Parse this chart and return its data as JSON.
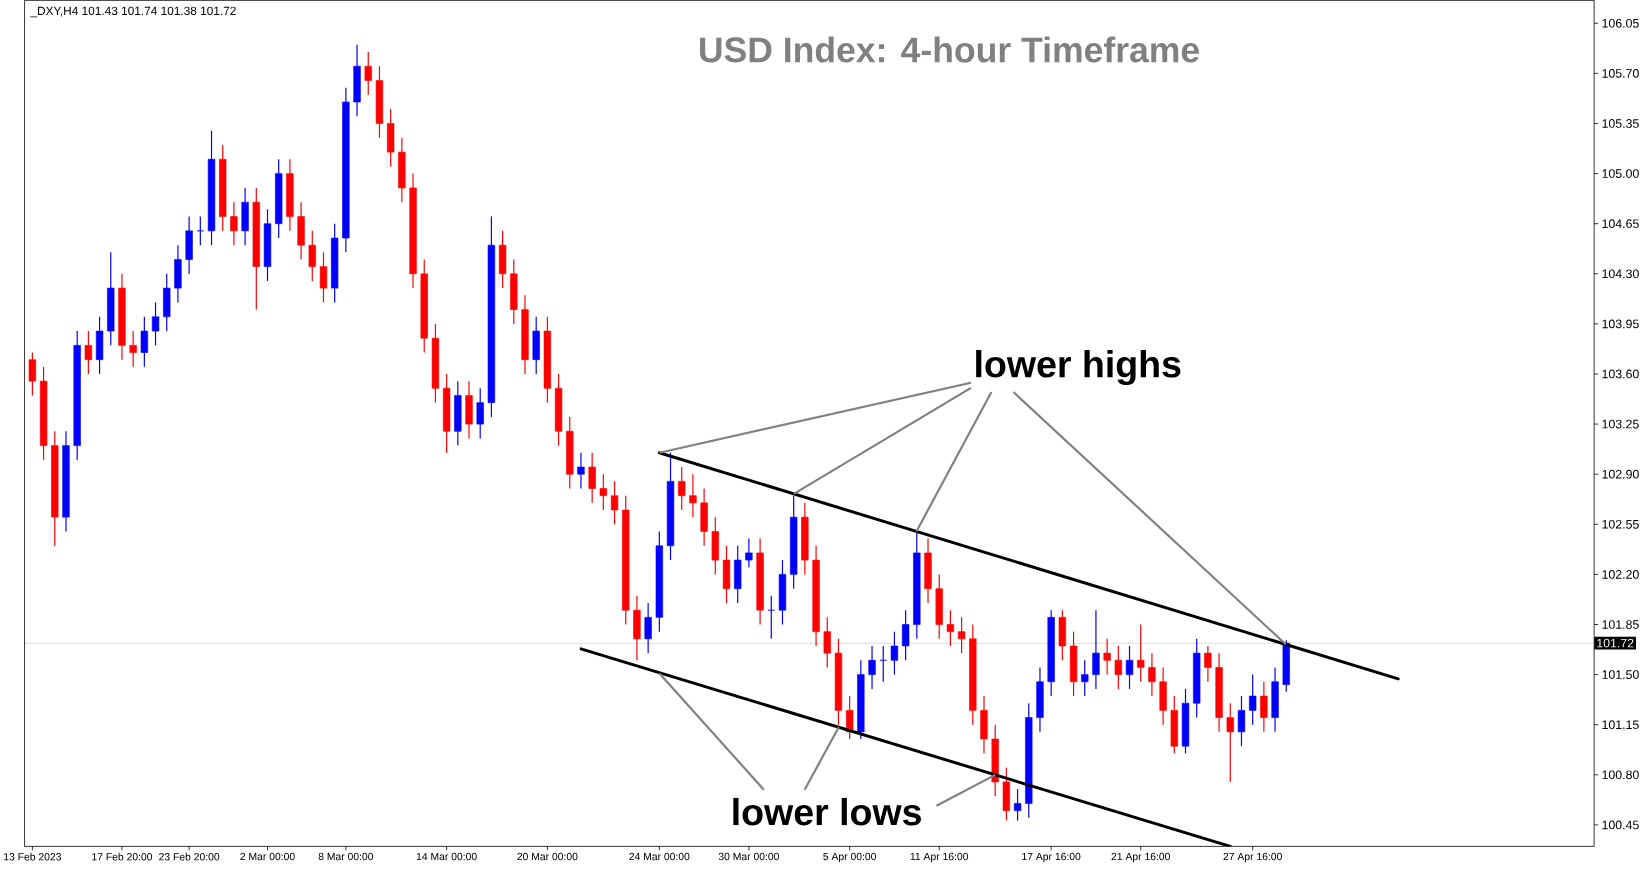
{
  "chart_data": {
    "type": "candlestick",
    "title": "USD Index: 4-hour Timeframe",
    "annotations": [
      "_DXY,H4  101.43 101.74 101.38 101.72",
      {
        "text": "lower highs",
        "x": "24 Mar 00:00",
        "y": 103.05
      },
      {
        "text": "lower lows",
        "x": "24 Mar 00:00",
        "y": 101.51
      }
    ],
    "categories": [
      "13 Feb 2023",
      null,
      null,
      null,
      null,
      null,
      null,
      null,
      "17 Feb 20:00",
      null,
      null,
      null,
      null,
      null,
      "23 Feb 20:00",
      null,
      null,
      null,
      null,
      null,
      null,
      "2 Mar 00:00",
      null,
      null,
      null,
      null,
      null,
      null,
      "8 Mar 00:00",
      null,
      null,
      null,
      null,
      null,
      null,
      null,
      null,
      "14 Mar 00:00",
      null,
      null,
      null,
      null,
      null,
      null,
      null,
      null,
      "20 Mar 00:00",
      null,
      null,
      null,
      null,
      null,
      null,
      null,
      null,
      null,
      "24 Mar 00:00",
      null,
      null,
      null,
      null,
      null,
      null,
      null,
      "30 Mar 00:00",
      null,
      null,
      null,
      null,
      null,
      null,
      null,
      null,
      "5 Apr 00:00",
      null,
      null,
      null,
      null,
      null,
      null,
      null,
      "11 Apr 16:00",
      null,
      null,
      null,
      null,
      null,
      null,
      null,
      null,
      null,
      "17 Apr 16:00",
      null,
      null,
      null,
      null,
      null,
      null,
      null,
      "21 Apr 16:00",
      null,
      null,
      null,
      null,
      null,
      null,
      null,
      null,
      null,
      "27 Apr 16:00",
      null,
      null,
      null,
      null,
      null,
      null,
      null,
      null,
      null,
      null,
      null,
      null,
      null,
      null,
      null,
      null,
      null,
      null,
      null,
      null,
      null,
      null,
      null,
      null,
      null,
      null,
      null,
      null,
      null,
      null
    ],
    "colors": [
      "#ff0000",
      "#ff0000",
      "#ff0000",
      "#0000ff",
      "#0000ff",
      "#ff0000",
      "#0000ff",
      "#0000ff",
      "#ff0000",
      "#ff0000",
      "#0000ff",
      "#0000ff",
      "#0000ff",
      "#0000ff",
      "#0000ff",
      "#0000ff",
      "#0000ff",
      "#ff0000",
      "#ff0000",
      "#0000ff",
      "#ff0000",
      "#0000ff",
      "#0000ff",
      "#ff0000",
      "#ff0000",
      "#ff0000",
      "#ff0000",
      "#0000ff",
      "#0000ff",
      "#0000ff",
      "#ff0000",
      "#ff0000",
      "#ff0000",
      "#ff0000",
      "#ff0000",
      "#ff0000",
      "#ff0000",
      "#ff0000",
      "#0000ff",
      "#ff0000",
      "#0000ff",
      "#0000ff",
      "#ff0000",
      "#ff0000",
      "#ff0000",
      "#0000ff",
      "#ff0000",
      "#ff0000",
      "#ff0000",
      "#0000ff",
      "#ff0000",
      "#ff0000",
      "#ff0000",
      "#ff0000",
      "#ff0000",
      "#0000ff",
      "#0000ff",
      "#0000ff",
      "#ff0000",
      "#ff0000",
      "#ff0000",
      "#ff0000",
      "#ff0000",
      "#0000ff",
      "#0000ff",
      "#ff0000",
      "#0000ff",
      "#0000ff",
      "#0000ff",
      "#ff0000",
      "#ff0000",
      "#ff0000",
      "#ff0000",
      "#ff0000",
      "#0000ff",
      "#0000ff",
      "#0000ff",
      "#0000ff",
      "#0000ff",
      "#0000ff",
      "#ff0000",
      "#ff0000",
      "#ff0000",
      "#ff0000",
      "#ff0000",
      "#ff0000",
      "#ff0000",
      "#ff0000",
      "#0000ff",
      "#0000ff",
      "#0000ff",
      "#0000ff",
      "#ff0000",
      "#ff0000",
      "#0000ff",
      "#0000ff",
      "#ff0000",
      "#ff0000",
      "#0000ff",
      "#ff0000",
      "#ff0000",
      "#ff0000",
      "#ff0000",
      "#0000ff",
      "#0000ff",
      "#ff0000",
      "#ff0000",
      "#ff0000",
      "#0000ff",
      "#0000ff",
      "#ff0000",
      "#0000ff",
      "#0000ff",
      null,
      null,
      null,
      null,
      null,
      null,
      null,
      null,
      null,
      null,
      null,
      null,
      null,
      null,
      null,
      null,
      null,
      null,
      null,
      null,
      null,
      null,
      null,
      null,
      null,
      null,
      null
    ],
    "ylim": [
      100.3,
      106.21
    ],
    "yticks": [
      {
        "value": 100.45,
        "label": "100.45"
      },
      {
        "value": 100.8,
        "label": "100.80"
      },
      {
        "value": 101.15,
        "label": "101.15"
      },
      {
        "value": 101.5,
        "label": "101.50"
      },
      {
        "value": 101.85,
        "label": "101.85"
      },
      {
        "value": 102.2,
        "label": "102.20"
      },
      {
        "value": 102.55,
        "label": "102.55"
      },
      {
        "value": 102.9,
        "label": "102.90"
      },
      {
        "value": 103.25,
        "label": "103.25"
      },
      {
        "value": 103.6,
        "label": "103.60"
      },
      {
        "value": 103.95,
        "label": "103.95"
      },
      {
        "value": 104.3,
        "label": "104.30"
      },
      {
        "value": 104.65,
        "label": "104.65"
      },
      {
        "value": 105.0,
        "label": "105.00"
      },
      {
        "value": 105.35,
        "label": "105.35"
      },
      {
        "value": 105.7,
        "label": "105.70"
      },
      {
        "value": 106.05,
        "label": "106.05"
      }
    ],
    "ref_lines": [
      {
        "axis": "y",
        "value": 101.72,
        "label": "101.72",
        "color": "#8c99a6"
      }
    ],
    "series": [
      {
        "type": "line",
        "color": "#000000",
        "values": [
          null,
          null,
          null,
          null,
          null,
          null,
          null,
          null,
          null,
          null,
          null,
          null,
          null,
          null,
          null,
          null,
          null,
          null,
          null,
          null,
          null,
          null,
          null,
          null,
          null,
          null,
          null,
          null,
          null,
          null,
          null,
          null,
          null,
          null,
          null,
          null,
          null,
          null,
          null,
          null,
          null,
          null,
          null,
          null,
          null,
          null,
          null,
          null,
          null,
          null,
          null,
          null,
          null,
          null,
          null,
          null,
          103.05,
          null,
          null,
          null,
          null,
          null,
          null,
          null,
          null,
          null,
          null,
          null,
          null,
          null,
          null,
          null,
          null,
          null,
          null,
          null,
          null,
          null,
          null,
          null,
          null,
          null,
          null,
          null,
          null,
          null,
          null,
          null,
          null,
          null,
          null,
          null,
          null,
          null,
          null,
          null,
          null,
          null,
          null,
          null,
          null,
          null,
          null,
          null,
          null,
          null,
          null,
          null,
          null,
          null,
          null,
          null,
          null,
          null,
          null,
          null,
          null,
          null,
          null,
          null,
          null,
          null,
          101.47,
          null,
          null,
          null,
          null,
          null,
          null,
          null,
          null,
          null,
          null,
          null,
          null,
          null,
          null,
          null,
          null,
          null
        ]
      },
      {
        "type": "line",
        "color": "#000000",
        "values": [
          null,
          null,
          null,
          null,
          null,
          null,
          null,
          null,
          null,
          null,
          null,
          null,
          null,
          null,
          null,
          null,
          null,
          null,
          null,
          null,
          null,
          null,
          null,
          null,
          null,
          null,
          null,
          null,
          null,
          null,
          null,
          null,
          null,
          null,
          null,
          null,
          null,
          null,
          null,
          null,
          null,
          null,
          null,
          null,
          null,
          null,
          null,
          null,
          null,
          101.68,
          null,
          null,
          null,
          null,
          null,
          null,
          null,
          null,
          null,
          null,
          null,
          null,
          null,
          null,
          null,
          null,
          null,
          null,
          null,
          null,
          null,
          null,
          null,
          null,
          null,
          null,
          null,
          null,
          null,
          null,
          null,
          null,
          null,
          null,
          null,
          null,
          null,
          null,
          null,
          null,
          null,
          null,
          null,
          null,
          null,
          null,
          null,
          null,
          null,
          null,
          null,
          null,
          null,
          null,
          null,
          null,
          null,
          100.3,
          null,
          null,
          null,
          null,
          null,
          null,
          null,
          null,
          null,
          null,
          null,
          null,
          null,
          null,
          null,
          null,
          null,
          null,
          null,
          null,
          null,
          null,
          null,
          null,
          null,
          null,
          null,
          null,
          null,
          null,
          null,
          null
        ]
      }
    ],
    "ohlc": [
      [
        103.7,
        103.75,
        103.45,
        103.55
      ],
      [
        103.55,
        103.65,
        103.0,
        103.1
      ],
      [
        103.1,
        103.2,
        102.4,
        102.6
      ],
      [
        102.6,
        103.2,
        102.5,
        103.1
      ],
      [
        103.1,
        103.9,
        103.0,
        103.8
      ],
      [
        103.8,
        103.9,
        103.6,
        103.7
      ],
      [
        103.7,
        104.0,
        103.6,
        103.9
      ],
      [
        103.9,
        104.45,
        103.8,
        104.2
      ],
      [
        104.2,
        104.3,
        103.7,
        103.8
      ],
      [
        103.8,
        103.9,
        103.65,
        103.75
      ],
      [
        103.75,
        104.0,
        103.65,
        103.9
      ],
      [
        103.9,
        104.1,
        103.8,
        104.0
      ],
      [
        104.0,
        104.3,
        103.9,
        104.2
      ],
      [
        104.2,
        104.5,
        104.1,
        104.4
      ],
      [
        104.4,
        104.7,
        104.3,
        104.6
      ],
      [
        104.6,
        104.7,
        104.5,
        104.6
      ],
      [
        104.6,
        105.3,
        104.5,
        105.1
      ],
      [
        105.1,
        105.2,
        104.6,
        104.7
      ],
      [
        104.7,
        104.8,
        104.5,
        104.6
      ],
      [
        104.6,
        104.9,
        104.5,
        104.8
      ],
      [
        104.8,
        104.9,
        104.05,
        104.35
      ],
      [
        104.35,
        104.75,
        104.25,
        104.65
      ],
      [
        104.65,
        105.1,
        104.55,
        105.0
      ],
      [
        105.0,
        105.1,
        104.6,
        104.7
      ],
      [
        104.7,
        104.8,
        104.4,
        104.5
      ],
      [
        104.5,
        104.6,
        104.25,
        104.35
      ],
      [
        104.35,
        104.45,
        104.1,
        104.2
      ],
      [
        104.2,
        104.65,
        104.1,
        104.55
      ],
      [
        104.55,
        105.6,
        104.45,
        105.5
      ],
      [
        105.5,
        105.9,
        105.4,
        105.75
      ],
      [
        105.75,
        105.85,
        105.55,
        105.65
      ],
      [
        105.65,
        105.75,
        105.25,
        105.35
      ],
      [
        105.35,
        105.45,
        105.05,
        105.15
      ],
      [
        105.15,
        105.25,
        104.8,
        104.9
      ],
      [
        104.9,
        105.0,
        104.2,
        104.3
      ],
      [
        104.3,
        104.4,
        103.75,
        103.85
      ],
      [
        103.85,
        103.95,
        103.4,
        103.5
      ],
      [
        103.5,
        103.6,
        103.05,
        103.2
      ],
      [
        103.2,
        103.55,
        103.1,
        103.45
      ],
      [
        103.45,
        103.55,
        103.15,
        103.25
      ],
      [
        103.25,
        103.5,
        103.15,
        103.4
      ],
      [
        103.4,
        104.7,
        103.3,
        104.5
      ],
      [
        104.5,
        104.6,
        104.2,
        104.3
      ],
      [
        104.3,
        104.4,
        103.95,
        104.05
      ],
      [
        104.05,
        104.15,
        103.6,
        103.7
      ],
      [
        103.7,
        104.0,
        103.6,
        103.9
      ],
      [
        103.9,
        104.0,
        103.4,
        103.5
      ],
      [
        103.5,
        103.6,
        103.1,
        103.2
      ],
      [
        103.2,
        103.3,
        102.8,
        102.9
      ],
      [
        102.9,
        103.05,
        102.8,
        102.95
      ],
      [
        102.95,
        103.05,
        102.7,
        102.8
      ],
      [
        102.8,
        102.9,
        102.65,
        102.75
      ],
      [
        102.75,
        102.85,
        102.55,
        102.65
      ],
      [
        102.65,
        102.75,
        101.85,
        101.95
      ],
      [
        101.95,
        102.05,
        101.6,
        101.75
      ],
      [
        101.75,
        102.0,
        101.65,
        101.9
      ],
      [
        101.9,
        102.5,
        101.8,
        102.4
      ],
      [
        102.4,
        103.05,
        102.3,
        102.85
      ],
      [
        102.85,
        102.95,
        102.65,
        102.75
      ],
      [
        102.75,
        102.9,
        102.6,
        102.7
      ],
      [
        102.7,
        102.8,
        102.4,
        102.5
      ],
      [
        102.5,
        102.6,
        102.2,
        102.3
      ],
      [
        102.3,
        102.4,
        102.0,
        102.1
      ],
      [
        102.1,
        102.4,
        102.0,
        102.3
      ],
      [
        102.3,
        102.45,
        102.25,
        102.35
      ],
      [
        102.35,
        102.45,
        101.85,
        101.95
      ],
      [
        101.95,
        102.05,
        101.75,
        101.95
      ],
      [
        101.95,
        102.3,
        101.85,
        102.2
      ],
      [
        102.2,
        102.75,
        102.1,
        102.6
      ],
      [
        102.6,
        102.7,
        102.2,
        102.3
      ],
      [
        102.3,
        102.4,
        101.7,
        101.8
      ],
      [
        101.8,
        101.9,
        101.55,
        101.65
      ],
      [
        101.65,
        101.75,
        101.15,
        101.25
      ],
      [
        101.25,
        101.35,
        101.05,
        101.1
      ],
      [
        101.1,
        101.6,
        101.05,
        101.5
      ],
      [
        101.5,
        101.7,
        101.4,
        101.6
      ],
      [
        101.6,
        101.7,
        101.45,
        101.6
      ],
      [
        101.6,
        101.8,
        101.5,
        101.7
      ],
      [
        101.7,
        101.95,
        101.6,
        101.85
      ],
      [
        101.85,
        102.5,
        101.75,
        102.35
      ],
      [
        102.35,
        102.45,
        102.0,
        102.1
      ],
      [
        102.1,
        102.2,
        101.75,
        101.85
      ],
      [
        101.85,
        101.95,
        101.7,
        101.8
      ],
      [
        101.8,
        101.9,
        101.65,
        101.75
      ],
      [
        101.75,
        101.85,
        101.15,
        101.25
      ],
      [
        101.25,
        101.35,
        100.95,
        101.05
      ],
      [
        101.05,
        101.15,
        100.65,
        100.75
      ],
      [
        100.75,
        100.85,
        100.48,
        100.55
      ],
      [
        100.55,
        100.7,
        100.48,
        100.6
      ],
      [
        100.6,
        101.3,
        100.5,
        101.2
      ],
      [
        101.2,
        101.55,
        101.1,
        101.45
      ],
      [
        101.45,
        101.95,
        101.35,
        101.9
      ],
      [
        101.9,
        101.95,
        101.6,
        101.7
      ],
      [
        101.7,
        101.8,
        101.35,
        101.45
      ],
      [
        101.45,
        101.6,
        101.35,
        101.5
      ],
      [
        101.5,
        101.95,
        101.4,
        101.65
      ],
      [
        101.65,
        101.75,
        101.5,
        101.6
      ],
      [
        101.6,
        101.7,
        101.4,
        101.5
      ],
      [
        101.5,
        101.7,
        101.4,
        101.6
      ],
      [
        101.6,
        101.85,
        101.45,
        101.55
      ],
      [
        101.55,
        101.65,
        101.35,
        101.45
      ],
      [
        101.45,
        101.55,
        101.15,
        101.25
      ],
      [
        101.25,
        101.35,
        100.95,
        101.0
      ],
      [
        101.0,
        101.4,
        100.95,
        101.3
      ],
      [
        101.3,
        101.75,
        101.2,
        101.65
      ],
      [
        101.65,
        101.7,
        101.45,
        101.55
      ],
      [
        101.55,
        101.65,
        101.1,
        101.2
      ],
      [
        101.2,
        101.3,
        100.75,
        101.1
      ],
      [
        101.1,
        101.35,
        101.0,
        101.25
      ],
      [
        101.25,
        101.5,
        101.15,
        101.35
      ],
      [
        101.35,
        101.45,
        101.1,
        101.2
      ],
      [
        101.2,
        101.55,
        101.1,
        101.45
      ],
      [
        101.43,
        101.74,
        101.38,
        101.72
      ],
      null,
      null,
      null,
      null,
      null,
      null,
      null,
      null,
      null,
      null,
      null,
      null,
      null,
      null,
      null,
      null,
      null,
      null,
      null,
      null,
      null,
      null,
      null,
      null,
      null,
      null,
      null
    ]
  }
}
